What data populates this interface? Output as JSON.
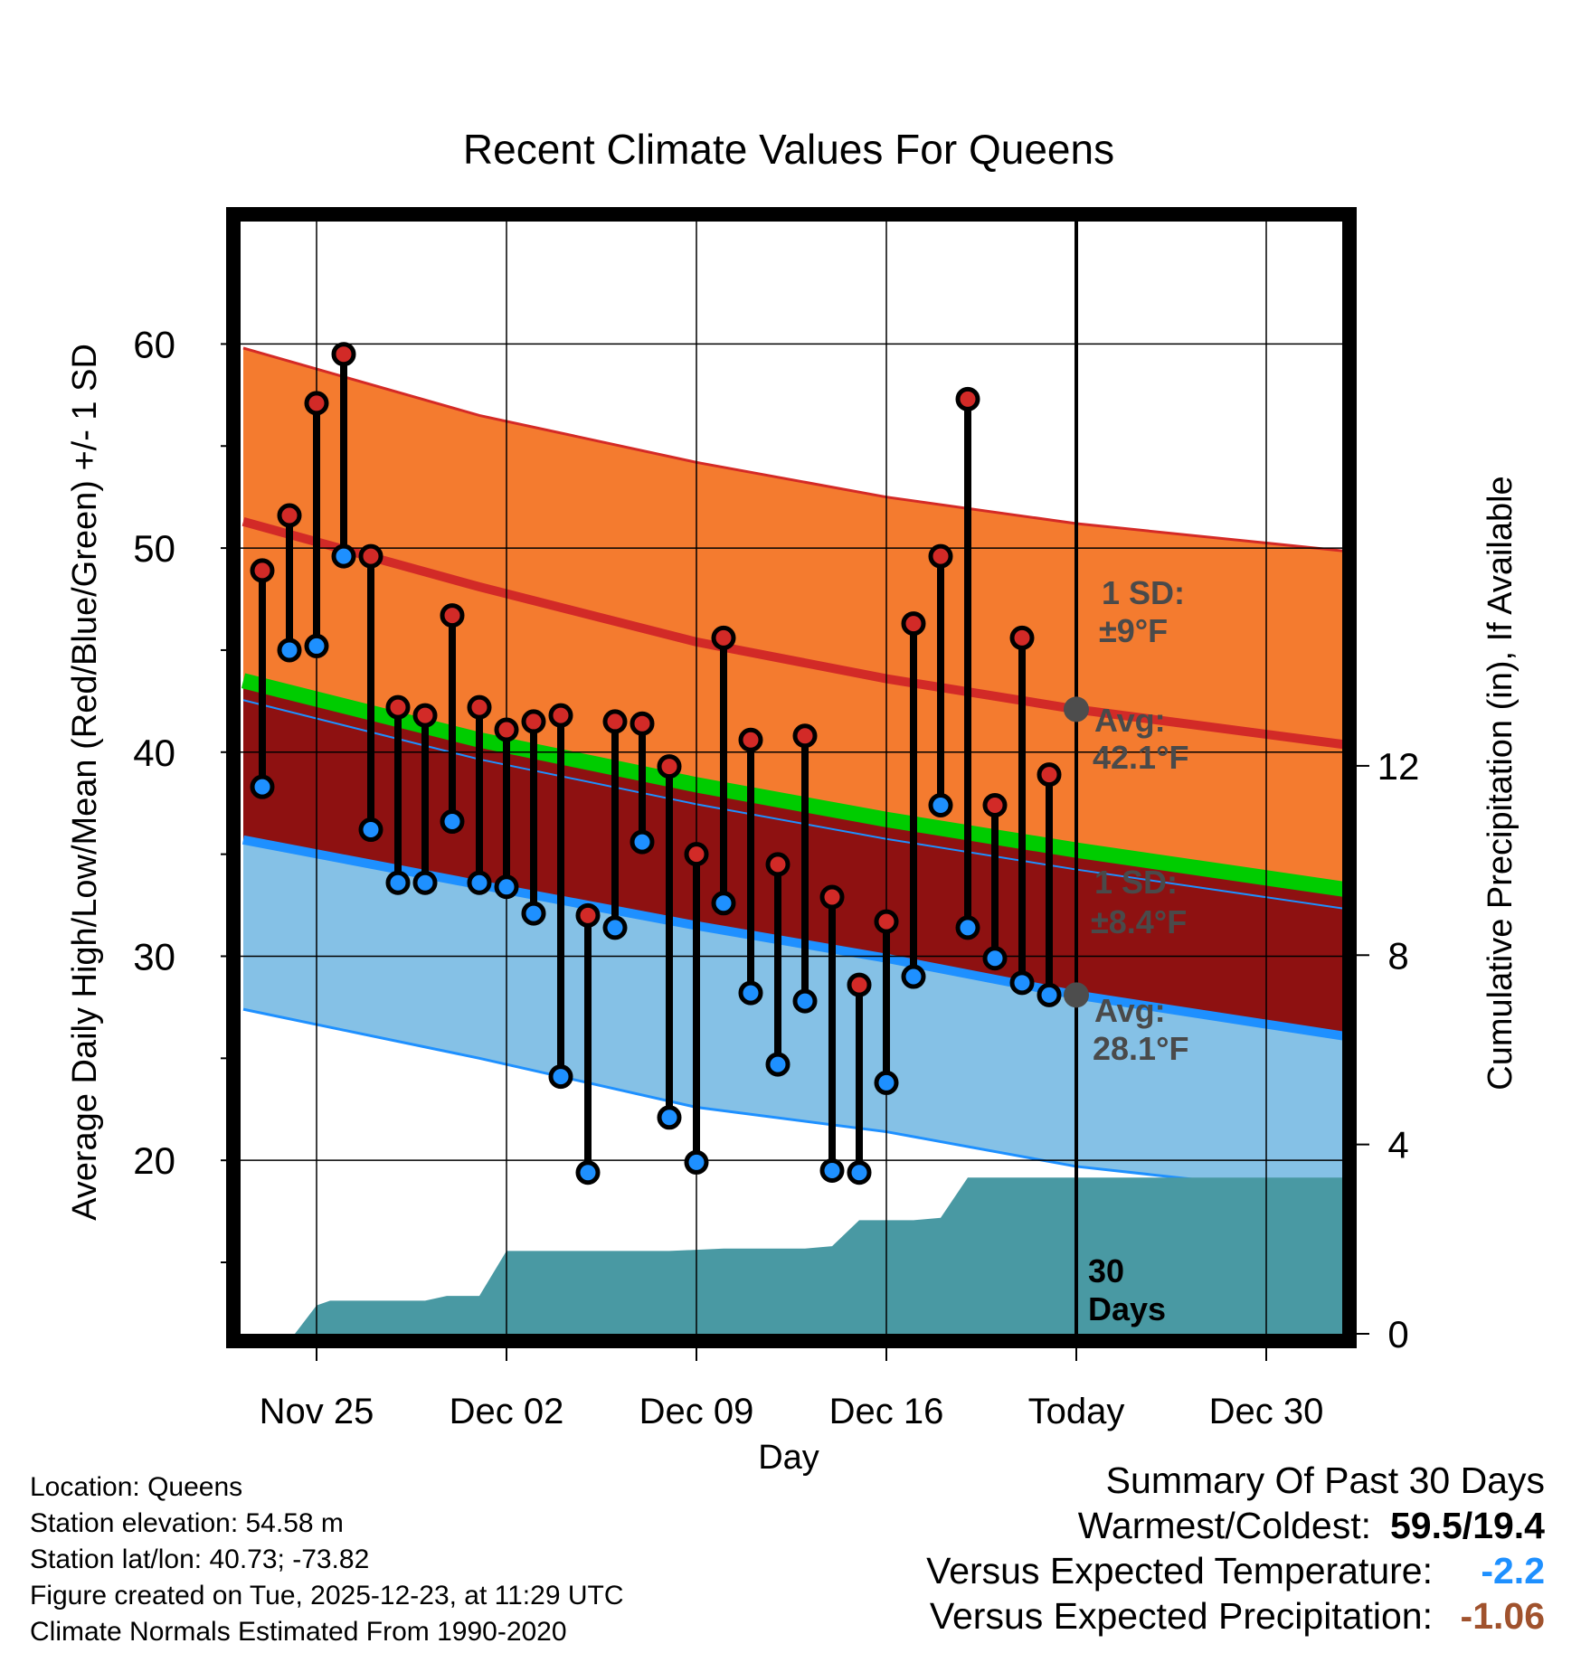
{
  "chart_data": {
    "type": "line",
    "title": "Recent Climate Values For Queens",
    "xlabel": "Day",
    "ylabel": "Average Daily High/Low/Mean (Red/Blue/Green) +/- 1 SD",
    "y2label": "Cumulative Precipitation (in), If Available",
    "xlim": [
      -3,
      38.5
    ],
    "ylim": [
      11.5,
      66
    ],
    "y2lim": [
      0,
      23.5
    ],
    "x_tick_positions": [
      0,
      7,
      14,
      21,
      28,
      35
    ],
    "x_tick_labels": [
      "Nov 25",
      "Dec 02",
      "Dec 09",
      "Dec 16",
      "Today",
      "Dec 30"
    ],
    "today_x": 28,
    "y_ticks": [
      20,
      30,
      40,
      50,
      60
    ],
    "y_minor_ticks": [
      15,
      25,
      35,
      45,
      55
    ],
    "y2_ticks": [
      0,
      4,
      8,
      12
    ],
    "normals": {
      "x": [
        -2.7,
        6,
        14,
        21,
        28,
        38.3
      ],
      "high_avg": [
        51.3,
        48.1,
        45.4,
        43.6,
        42.1,
        40.3
      ],
      "high_upper": [
        59.8,
        56.5,
        54.2,
        52.5,
        51.2,
        49.8
      ],
      "low_avg": [
        35.7,
        33.5,
        31.5,
        29.9,
        28.1,
        26.0
      ],
      "low_lower": [
        27.4,
        25.0,
        22.6,
        21.4,
        19.7,
        18.2
      ],
      "mean_avg": [
        43.5,
        40.6,
        38.4,
        36.7,
        35.2,
        33.2
      ]
    },
    "days": {
      "x": [
        -2,
        -1,
        0,
        1,
        2,
        3,
        4,
        5,
        6,
        7,
        8,
        9,
        10,
        11,
        12,
        13,
        14,
        15,
        16,
        17,
        18,
        19,
        20,
        21,
        22,
        23,
        24,
        25,
        26,
        27
      ],
      "high": [
        48.9,
        51.6,
        57.1,
        59.5,
        49.6,
        42.2,
        41.8,
        46.7,
        42.2,
        41.1,
        41.5,
        41.8,
        32.0,
        41.5,
        41.4,
        39.3,
        35.0,
        45.6,
        40.6,
        34.5,
        40.8,
        32.9,
        28.6,
        31.7,
        46.3,
        49.6,
        57.3,
        37.4,
        45.6,
        38.9
      ],
      "low": [
        38.3,
        45.0,
        45.2,
        49.6,
        36.2,
        33.6,
        33.6,
        36.6,
        33.6,
        33.4,
        32.1,
        24.1,
        19.4,
        31.4,
        35.6,
        22.1,
        19.9,
        32.6,
        28.2,
        24.7,
        27.8,
        19.5,
        19.4,
        23.8,
        29.0,
        37.4,
        31.4,
        29.9,
        28.7,
        28.1
      ]
    },
    "precip": {
      "x": [
        -2.7,
        -0.8,
        0,
        0.5,
        4,
        4.8,
        6,
        7,
        13,
        15,
        18,
        19,
        20,
        22,
        23,
        24,
        38.3
      ],
      "cum": [
        0,
        0,
        0.6,
        0.7,
        0.7,
        0.8,
        0.8,
        1.75,
        1.75,
        1.8,
        1.8,
        1.85,
        2.4,
        2.4,
        2.45,
        3.3,
        3.3
      ]
    },
    "annotations": {
      "high_sd_title": "1 SD:",
      "high_sd_value": "±9°F",
      "high_avg_title": "Avg:",
      "high_avg_value": "42.1°F",
      "low_sd_title": "1 SD:",
      "low_sd_value": "±8.4°F",
      "low_avg_title": "Avg:",
      "low_avg_value": "28.1°F",
      "period_number": "30",
      "period_unit": "Days"
    },
    "colors": {
      "high_band": "#F47B2F",
      "high_line": "#D22A27",
      "high_band_edge": "#D42A26",
      "mean_band": "#8E1111",
      "mean_line": "#00CC00",
      "low_band": "#85C1E6",
      "low_line": "#1E90FF",
      "precip_fill": "#4999A3",
      "high_dot": "#D22A27",
      "low_dot": "#1E90FF",
      "annotation_text": "#4A4A4A",
      "avg_marker": "#4D4D4D"
    }
  },
  "info": {
    "location": "Location: Queens",
    "elevation": "Station elevation: 54.58 m",
    "latlon": "Station lat/lon: 40.73; -73.82",
    "created": "Figure created on Tue, 2025-12-23, at 11:29 UTC",
    "normals": "Climate Normals Estimated From 1990-2020"
  },
  "summary": {
    "title": "Summary Of Past 30 Days",
    "warmest_coldest_label": "Warmest/Coldest:",
    "warmest_coldest_value": "59.5/19.4",
    "temp_label": "Versus Expected Temperature:",
    "temp_value": "-2.2",
    "temp_color": "#1E90FF",
    "precip_label": "Versus Expected Precipitation:",
    "precip_value": "-1.06",
    "precip_color": "#A0522D"
  }
}
